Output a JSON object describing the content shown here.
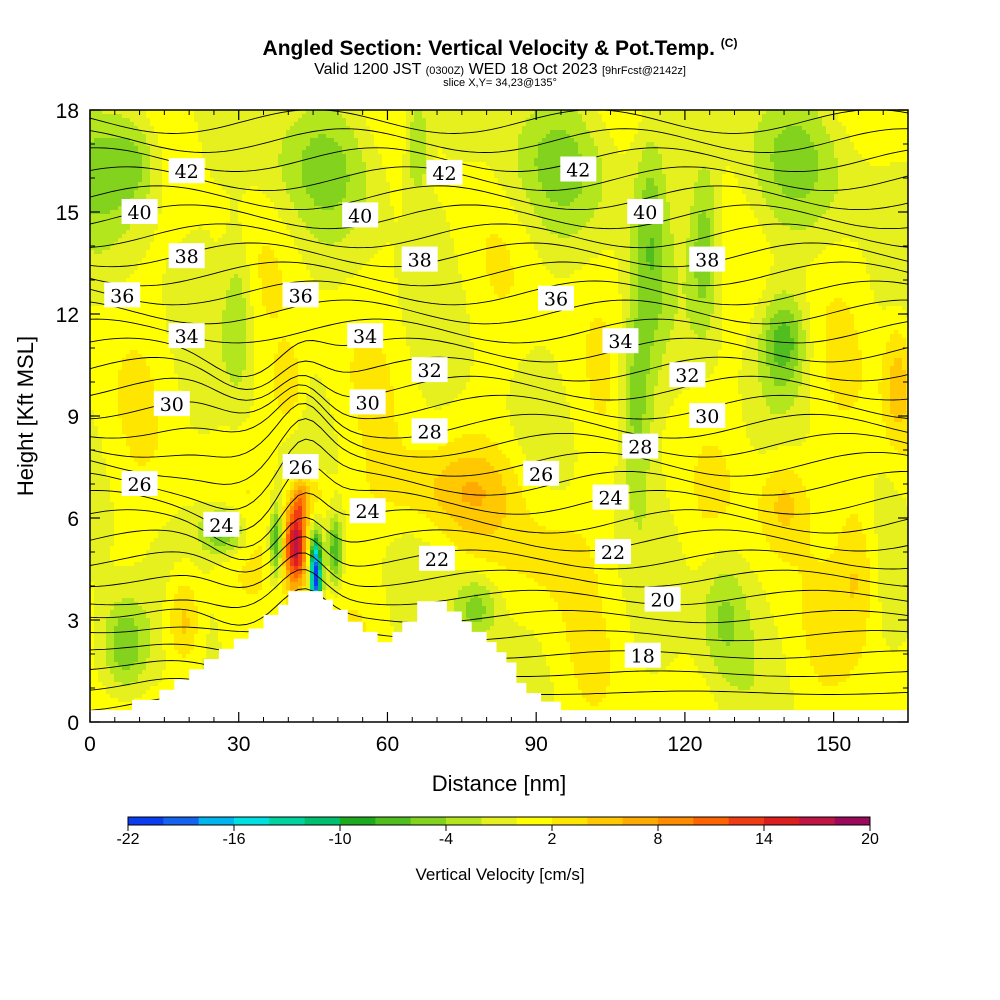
{
  "header": {
    "title_main": "Angled Section: Vertical Velocity & Pot.Temp.",
    "title_mark": "(C)",
    "valid_a": "Valid 1200 JST",
    "valid_b": "(0300Z)",
    "valid_c": "WED 18 Oct 2023",
    "valid_d": "[9hrFcst@2142z]",
    "slice": "slice X,Y= 34,23@135°"
  },
  "chart_data": {
    "type": "heatmap",
    "xlabel": "Distance [nm]",
    "ylabel": "Height [Kft MSL]",
    "xlim": [
      0,
      165
    ],
    "ylim": [
      0,
      18
    ],
    "x_ticks": [
      "0",
      "30",
      "60",
      "90",
      "120",
      "150"
    ],
    "y_ticks": [
      "0",
      "3",
      "6",
      "9",
      "12",
      "15",
      "18"
    ],
    "colorbar": {
      "label": "Vertical Velocity [cm/s]",
      "min": -22,
      "max": 20,
      "step": 2,
      "tick_labels": [
        "-22",
        "-16",
        "-10",
        "-4",
        "2",
        "8",
        "14",
        "20"
      ],
      "colors": [
        "#0000ff",
        "#0a3cf0",
        "#1464f0",
        "#00b4f0",
        "#00e0e0",
        "#00d2a0",
        "#00c070",
        "#1eaa1e",
        "#50be1e",
        "#82d21e",
        "#b4e61e",
        "#e6f01e",
        "#ffff00",
        "#ffe600",
        "#ffc800",
        "#ffaa00",
        "#ff8c00",
        "#ff6400",
        "#f03c14",
        "#dc1e1e",
        "#be1446",
        "#9b0a5a",
        "#7d0a80"
      ]
    },
    "isotherm_labels": [
      {
        "text": "42",
        "x": 19.5,
        "y": 16.2
      },
      {
        "text": "42",
        "x": 71.5,
        "y": 16.15
      },
      {
        "text": "42",
        "x": 98.5,
        "y": 16.25
      },
      {
        "text": "40",
        "x": 10,
        "y": 15.0
      },
      {
        "text": "40",
        "x": 54.5,
        "y": 14.9
      },
      {
        "text": "40",
        "x": 112,
        "y": 15.0
      },
      {
        "text": "38",
        "x": 19.5,
        "y": 13.7
      },
      {
        "text": "38",
        "x": 66.5,
        "y": 13.6
      },
      {
        "text": "38",
        "x": 124.5,
        "y": 13.6
      },
      {
        "text": "36",
        "x": 6.5,
        "y": 12.55
      },
      {
        "text": "36",
        "x": 42.5,
        "y": 12.55
      },
      {
        "text": "36",
        "x": 94,
        "y": 12.45
      },
      {
        "text": "34",
        "x": 19.5,
        "y": 11.35
      },
      {
        "text": "34",
        "x": 55.5,
        "y": 11.35
      },
      {
        "text": "34",
        "x": 107,
        "y": 11.2
      },
      {
        "text": "32",
        "x": 68.5,
        "y": 10.35
      },
      {
        "text": "32",
        "x": 120.5,
        "y": 10.2
      },
      {
        "text": "30",
        "x": 16.5,
        "y": 9.35
      },
      {
        "text": "30",
        "x": 56,
        "y": 9.4
      },
      {
        "text": "30",
        "x": 124.5,
        "y": 9.0
      },
      {
        "text": "28",
        "x": 68.5,
        "y": 8.55
      },
      {
        "text": "28",
        "x": 111,
        "y": 8.1
      },
      {
        "text": "26",
        "x": 42.5,
        "y": 7.5
      },
      {
        "text": "26",
        "x": 10,
        "y": 7.0
      },
      {
        "text": "26",
        "x": 91,
        "y": 7.3
      },
      {
        "text": "24",
        "x": 26.5,
        "y": 5.8
      },
      {
        "text": "24",
        "x": 56,
        "y": 6.2
      },
      {
        "text": "24",
        "x": 105,
        "y": 6.6
      },
      {
        "text": "22",
        "x": 70,
        "y": 4.8
      },
      {
        "text": "22",
        "x": 105.5,
        "y": 5.0
      },
      {
        "text": "20",
        "x": 115.5,
        "y": 3.6
      },
      {
        "text": "18",
        "x": 111.5,
        "y": 1.95
      }
    ]
  }
}
